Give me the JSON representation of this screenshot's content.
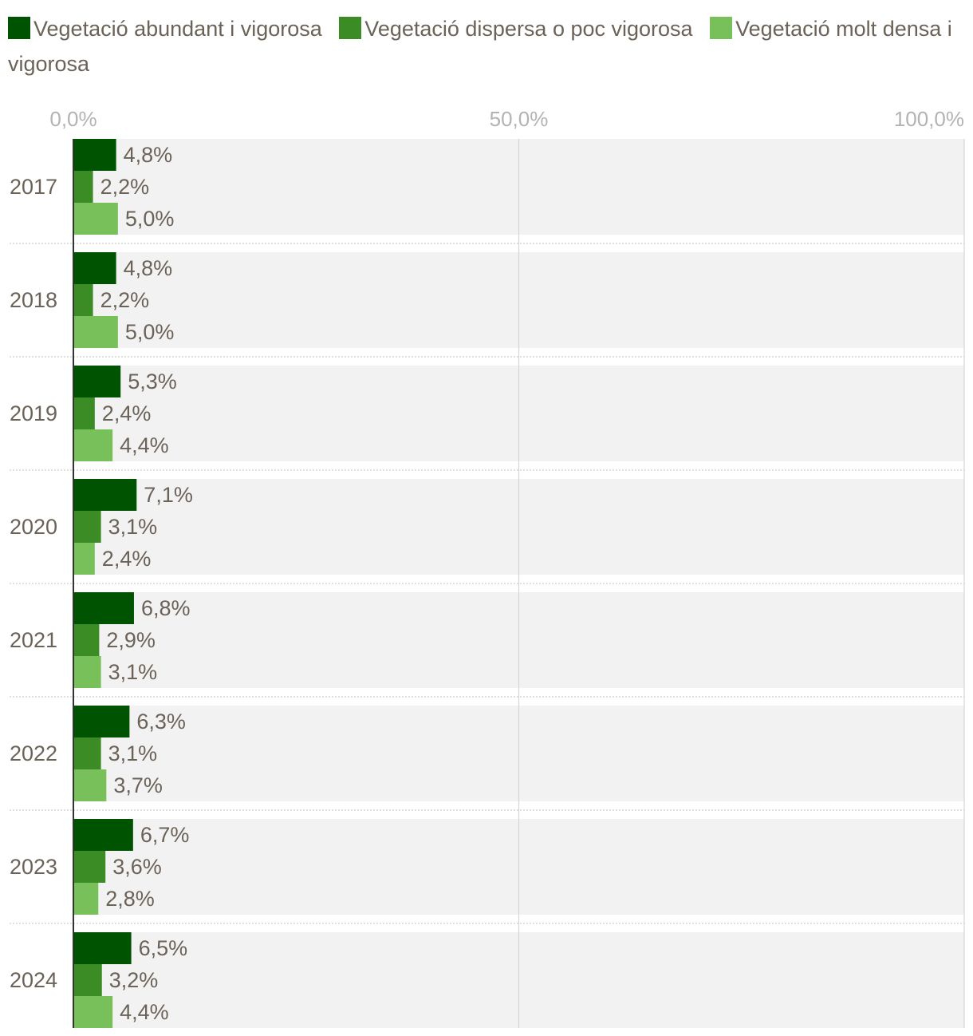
{
  "chart_data": {
    "type": "bar",
    "orientation": "horizontal",
    "categories": [
      "2017",
      "2018",
      "2019",
      "2020",
      "2021",
      "2022",
      "2023",
      "2024"
    ],
    "series": [
      {
        "name": "Vegetació abundant i vigorosa",
        "color": "#005300",
        "values": [
          4.8,
          4.8,
          5.3,
          7.1,
          6.8,
          6.3,
          6.7,
          6.5
        ],
        "labels": [
          "4,8%",
          "4,8%",
          "5,3%",
          "7,1%",
          "6,8%",
          "6,3%",
          "6,7%",
          "6,5%"
        ]
      },
      {
        "name": "Vegetació dispersa o poc vigorosa",
        "color": "#3c8c25",
        "values": [
          2.2,
          2.2,
          2.4,
          3.1,
          2.9,
          3.1,
          3.6,
          3.2
        ],
        "labels": [
          "2,2%",
          "2,2%",
          "2,4%",
          "3,1%",
          "2,9%",
          "3,1%",
          "3,6%",
          "3,2%"
        ]
      },
      {
        "name": "Vegetació molt densa i vigorosa",
        "color": "#78c15a",
        "values": [
          5.0,
          5.0,
          4.4,
          2.4,
          3.1,
          3.7,
          2.8,
          4.4
        ],
        "labels": [
          "5,0%",
          "5,0%",
          "4,4%",
          "2,4%",
          "3,1%",
          "3,7%",
          "2,8%",
          "4,4%"
        ]
      }
    ],
    "xlim": [
      0,
      100
    ],
    "x_ticks": [
      0,
      50,
      100
    ],
    "x_tick_labels": [
      "0,0%",
      "50,0%",
      "100,0%"
    ],
    "legend_position": "top",
    "title": "",
    "xlabel": "",
    "ylabel": ""
  }
}
